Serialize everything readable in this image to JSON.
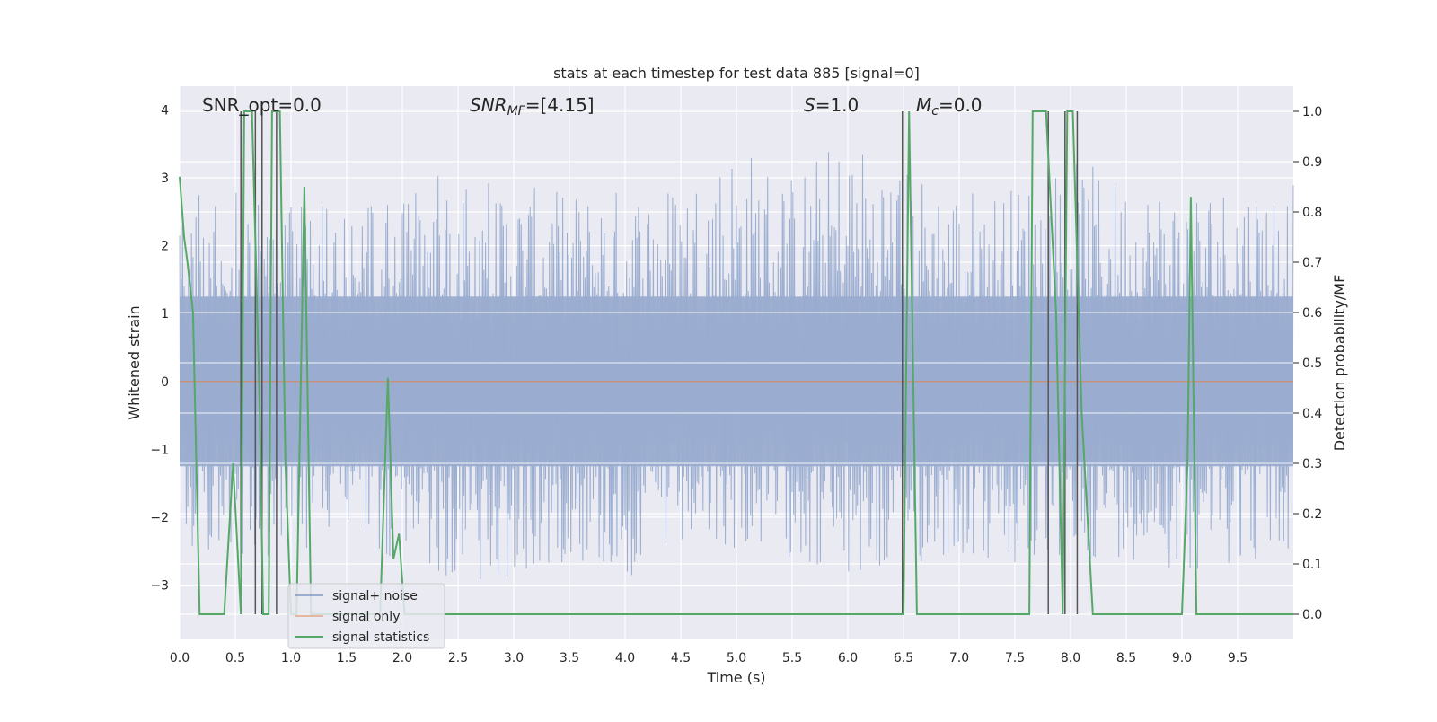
{
  "chart_data": {
    "type": "line",
    "title": "stats at each timestep for test data 885 [signal=0]",
    "xlabel": "Time (s)",
    "ylabel": "Whitened strain",
    "y2label": "Detection probability/MF",
    "xlim": [
      0.0,
      10.0
    ],
    "ylim": [
      -3.8,
      4.35
    ],
    "y2lim": [
      -0.05,
      1.05
    ],
    "xticks": [
      0.0,
      0.5,
      1.0,
      1.5,
      2.0,
      2.5,
      3.0,
      3.5,
      4.0,
      4.5,
      5.0,
      5.5,
      6.0,
      6.5,
      7.0,
      7.5,
      8.0,
      8.5,
      9.0,
      9.5
    ],
    "xtick_labels": [
      "0.0",
      "0.5",
      "1.0",
      "1.5",
      "2.0",
      "2.5",
      "3.0",
      "3.5",
      "4.0",
      "4.5",
      "5.0",
      "5.5",
      "6.0",
      "6.5",
      "7.0",
      "7.5",
      "8.0",
      "8.5",
      "9.0",
      "9.5"
    ],
    "yticks": [
      -3,
      -2,
      -1,
      0,
      1,
      2,
      3,
      4
    ],
    "ytick_labels": [
      "−3",
      "−2",
      "−1",
      "0",
      "1",
      "2",
      "3",
      "4"
    ],
    "y2ticks": [
      0.0,
      0.1,
      0.2,
      0.3,
      0.4,
      0.5,
      0.6,
      0.7,
      0.8,
      0.9,
      1.0
    ],
    "y2tick_labels": [
      "0.0",
      "0.1",
      "0.2",
      "0.3",
      "0.4",
      "0.5",
      "0.6",
      "0.7",
      "0.8",
      "0.9",
      "1.0"
    ],
    "grid": true,
    "legend_placement": "lower-left",
    "annotations": {
      "snr_opt": "SNR_opt=0.0",
      "snr_mf_prefix": "SNR",
      "snr_mf_sub": "MF",
      "snr_mf_value": "=[4.15]",
      "s_symbol": "S",
      "s_value": "=1.0",
      "mc_symbol": "M",
      "mc_sub": "c",
      "mc_value": "=0.0"
    },
    "noise_envelope": {
      "x": [
        0.0,
        0.5,
        1.0,
        1.5,
        2.0,
        2.5,
        3.0,
        3.5,
        4.0,
        4.5,
        5.0,
        5.5,
        6.0,
        6.5,
        7.0,
        7.5,
        8.0,
        8.5,
        9.0,
        9.5,
        10.0
      ],
      "upper": [
        2.8,
        2.8,
        2.6,
        2.7,
        2.8,
        3.3,
        2.9,
        2.8,
        2.9,
        3.0,
        3.6,
        3.1,
        3.7,
        3.2,
        2.9,
        2.9,
        3.3,
        3.0,
        2.9,
        3.0,
        3.0
      ],
      "lower": [
        -2.4,
        -2.6,
        -2.6,
        -2.4,
        -2.7,
        -2.9,
        -3.3,
        -2.6,
        -3.0,
        -2.6,
        -2.5,
        -2.6,
        -3.1,
        -2.8,
        -2.6,
        -2.9,
        -2.7,
        -2.6,
        -2.8,
        -2.7,
        -2.6
      ]
    },
    "vlines": [
      0.55,
      0.68,
      0.74,
      0.87,
      6.49,
      7.8,
      7.95,
      8.06
    ],
    "series": [
      {
        "name": "signal+ noise",
        "color": "#4c72b0",
        "values": "dense random noise trace, approx. range -3.3 to 3.7"
      },
      {
        "name": "signal only",
        "color": "#dd8452",
        "values": [
          [
            0.0,
            0.0
          ],
          [
            10.0,
            0.0
          ]
        ]
      },
      {
        "name": "signal statistics",
        "color": "#55a868",
        "axis": "right",
        "points": [
          [
            0.0,
            0.87
          ],
          [
            0.04,
            0.75
          ],
          [
            0.07,
            0.7
          ],
          [
            0.12,
            0.6
          ],
          [
            0.18,
            0.0
          ],
          [
            0.4,
            0.0
          ],
          [
            0.48,
            0.3
          ],
          [
            0.55,
            0.0
          ],
          [
            0.58,
            1.0
          ],
          [
            0.65,
            1.0
          ],
          [
            0.72,
            0.4
          ],
          [
            0.75,
            0.0
          ],
          [
            0.8,
            0.0
          ],
          [
            0.83,
            1.0
          ],
          [
            0.9,
            1.0
          ],
          [
            0.95,
            0.3
          ],
          [
            1.0,
            0.0
          ],
          [
            1.05,
            0.0
          ],
          [
            1.12,
            0.85
          ],
          [
            1.18,
            0.0
          ],
          [
            1.8,
            0.0
          ],
          [
            1.87,
            0.47
          ],
          [
            1.92,
            0.11
          ],
          [
            1.97,
            0.16
          ],
          [
            2.02,
            0.0
          ],
          [
            6.5,
            0.0
          ],
          [
            6.55,
            1.0
          ],
          [
            6.62,
            0.0
          ],
          [
            7.63,
            0.0
          ],
          [
            7.66,
            1.0
          ],
          [
            7.78,
            1.0
          ],
          [
            7.87,
            0.6
          ],
          [
            7.93,
            0.0
          ],
          [
            7.97,
            1.0
          ],
          [
            8.02,
            1.0
          ],
          [
            8.1,
            0.4
          ],
          [
            8.2,
            0.0
          ],
          [
            8.9,
            0.0
          ],
          [
            9.0,
            0.0
          ],
          [
            9.05,
            0.3
          ],
          [
            9.08,
            0.83
          ],
          [
            9.13,
            0.0
          ],
          [
            10.0,
            0.0
          ]
        ]
      }
    ],
    "legend": [
      "signal+ noise",
      "signal only",
      "signal statistics"
    ],
    "colors": {
      "background": "#eaeaf2",
      "grid": "#ffffff",
      "vline": "#555555",
      "noise_fill": "#9aaccf"
    }
  }
}
